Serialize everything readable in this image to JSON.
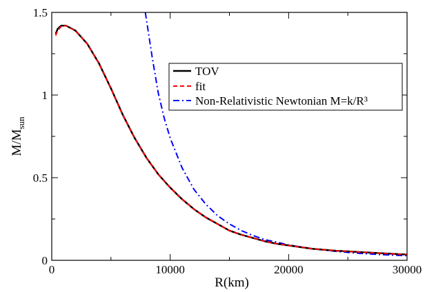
{
  "chart_data": {
    "type": "line",
    "title": "",
    "xlabel": "R(km)",
    "ylabel_main": "M/M",
    "ylabel_sub": "sun",
    "xlim": [
      0,
      30000
    ],
    "ylim": [
      0,
      1.5
    ],
    "x_ticks": [
      0,
      10000,
      20000,
      30000
    ],
    "x_tick_labels": [
      "0",
      "10000",
      "20000",
      "30000"
    ],
    "y_ticks": [
      0,
      0.5,
      1,
      1.5
    ],
    "y_tick_labels": [
      "0",
      "0.5",
      "1",
      "1.5"
    ],
    "grid": false,
    "legend_position": "top-right",
    "series": [
      {
        "name": "TOV",
        "color": "#000000",
        "style": "solid",
        "points": [
          [
            330,
            1.37
          ],
          [
            500,
            1.4
          ],
          [
            800,
            1.42
          ],
          [
            1200,
            1.42
          ],
          [
            2000,
            1.39
          ],
          [
            3000,
            1.31
          ],
          [
            4000,
            1.19
          ],
          [
            5000,
            1.04
          ],
          [
            6000,
            0.88
          ],
          [
            7000,
            0.74
          ],
          [
            8000,
            0.62
          ],
          [
            9000,
            0.52
          ],
          [
            10000,
            0.44
          ],
          [
            11000,
            0.37
          ],
          [
            12000,
            0.31
          ],
          [
            13000,
            0.26
          ],
          [
            14000,
            0.22
          ],
          [
            15000,
            0.18
          ],
          [
            16000,
            0.155
          ],
          [
            17000,
            0.135
          ],
          [
            18000,
            0.115
          ],
          [
            19000,
            0.1
          ],
          [
            20000,
            0.09
          ],
          [
            22000,
            0.07
          ],
          [
            24000,
            0.058
          ],
          [
            26000,
            0.05
          ],
          [
            28000,
            0.042
          ],
          [
            30000,
            0.035
          ]
        ]
      },
      {
        "name": "fit",
        "color": "#ff0000",
        "style": "dashed",
        "points": [
          [
            330,
            1.36
          ],
          [
            500,
            1.39
          ],
          [
            800,
            1.415
          ],
          [
            1200,
            1.42
          ],
          [
            2000,
            1.39
          ],
          [
            3000,
            1.31
          ],
          [
            4000,
            1.19
          ],
          [
            5000,
            1.04
          ],
          [
            6000,
            0.88
          ],
          [
            7000,
            0.74
          ],
          [
            8000,
            0.62
          ],
          [
            9000,
            0.52
          ],
          [
            10000,
            0.44
          ],
          [
            11000,
            0.37
          ],
          [
            12000,
            0.31
          ],
          [
            13000,
            0.26
          ],
          [
            14000,
            0.22
          ],
          [
            15000,
            0.18
          ],
          [
            16000,
            0.155
          ],
          [
            17000,
            0.135
          ],
          [
            18000,
            0.115
          ],
          [
            19000,
            0.1
          ],
          [
            20000,
            0.09
          ],
          [
            22000,
            0.07
          ],
          [
            24000,
            0.058
          ],
          [
            26000,
            0.05
          ],
          [
            28000,
            0.042
          ],
          [
            30000,
            0.035
          ]
        ]
      },
      {
        "name": "Non-Relativistic Newtonian M=k/R³",
        "color": "#0000ff",
        "style": "dashdot",
        "points": [
          [
            7900,
            1.5
          ],
          [
            8500,
            1.22
          ],
          [
            9000,
            1.01
          ],
          [
            9500,
            0.86
          ],
          [
            10000,
            0.74
          ],
          [
            11000,
            0.56
          ],
          [
            12000,
            0.43
          ],
          [
            13000,
            0.34
          ],
          [
            14000,
            0.27
          ],
          [
            15000,
            0.22
          ],
          [
            16000,
            0.18
          ],
          [
            17000,
            0.15
          ],
          [
            18000,
            0.125
          ],
          [
            19000,
            0.11
          ],
          [
            20000,
            0.093
          ],
          [
            22000,
            0.07
          ],
          [
            24000,
            0.054
          ],
          [
            26000,
            0.042
          ],
          [
            28000,
            0.034
          ],
          [
            30000,
            0.028
          ]
        ]
      }
    ]
  }
}
